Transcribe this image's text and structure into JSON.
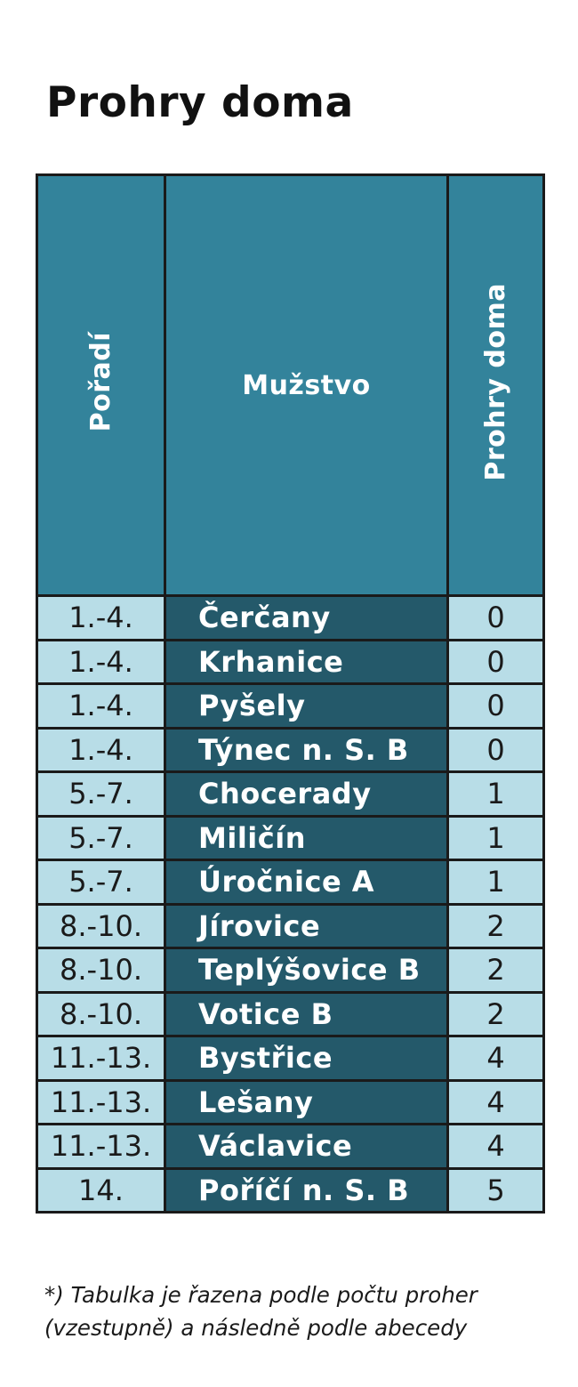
{
  "title": "Prohry doma",
  "table": {
    "headers": {
      "rank": "Pořadí",
      "team": "Mužstvo",
      "losses": "Prohry doma"
    },
    "rows": [
      {
        "rank": "1.-4.",
        "team": "Čerčany",
        "losses": "0"
      },
      {
        "rank": "1.-4.",
        "team": "Krhanice",
        "losses": "0"
      },
      {
        "rank": "1.-4.",
        "team": "Pyšely",
        "losses": "0"
      },
      {
        "rank": "1.-4.",
        "team": "Týnec n. S. B",
        "losses": "0"
      },
      {
        "rank": "5.-7.",
        "team": "Chocerady",
        "losses": "1"
      },
      {
        "rank": "5.-7.",
        "team": "Miličín",
        "losses": "1"
      },
      {
        "rank": "5.-7.",
        "team": "Úročnice A",
        "losses": "1"
      },
      {
        "rank": "8.-10.",
        "team": "Jírovice",
        "losses": "2"
      },
      {
        "rank": "8.-10.",
        "team": "Teplýšovice B",
        "losses": "2"
      },
      {
        "rank": "8.-10.",
        "team": "Votice B",
        "losses": "2"
      },
      {
        "rank": "11.-13.",
        "team": "Bystřice",
        "losses": "4"
      },
      {
        "rank": "11.-13.",
        "team": "Lešany",
        "losses": "4"
      },
      {
        "rank": "11.-13.",
        "team": "Václavice",
        "losses": "4"
      },
      {
        "rank": "14.",
        "team": "Poříčí n. S. B",
        "losses": "5"
      }
    ]
  },
  "footnote": {
    "line1": "*) Tabulka je řazena podle počtu proher",
    "line2": "(vzestupně) a následně podle abecedy"
  },
  "colors": {
    "header_bg": "#33839b",
    "team_cell_bg": "#24596a",
    "value_cell_bg": "#b8dde7",
    "border": "#1a1a1a"
  }
}
